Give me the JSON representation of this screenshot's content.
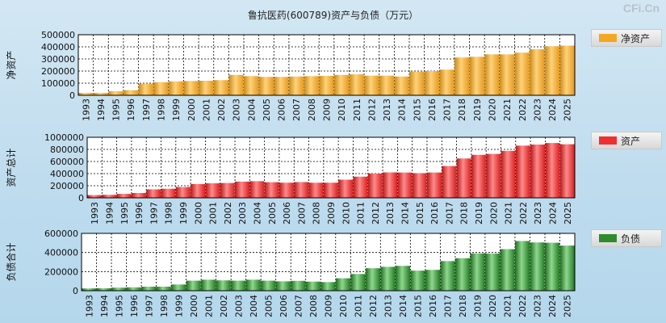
{
  "title": "鲁抗医药(600789)资产与负债（万元）",
  "watermark": "CFi.Cn",
  "colors": {
    "net_assets": "#f5a623",
    "total_assets": "#f03030",
    "liabilities": "#2e8b2e"
  },
  "chart_data": [
    {
      "type": "bar",
      "ylabel": "净资产",
      "legend": "净资产",
      "ylim": [
        0,
        500000
      ],
      "yticks": [
        0,
        100000,
        200000,
        300000,
        400000,
        500000
      ],
      "categories": [
        "1993",
        "1994",
        "1995",
        "1996",
        "1997",
        "1998",
        "1999",
        "2000",
        "2001",
        "2002",
        "2003",
        "2004",
        "2005",
        "2006",
        "2007",
        "2008",
        "2009",
        "2010",
        "2011",
        "2012",
        "2013",
        "2014",
        "2015",
        "2016",
        "2017",
        "2018",
        "2019",
        "2020",
        "2021",
        "2022",
        "2023",
        "2024",
        "2025"
      ],
      "values": [
        20000,
        20000,
        33000,
        42000,
        95000,
        108000,
        115000,
        118000,
        120000,
        125000,
        168000,
        158000,
        152000,
        152000,
        155000,
        158000,
        160000,
        168000,
        173000,
        162000,
        162000,
        155000,
        195000,
        200000,
        212000,
        312000,
        318000,
        338000,
        338000,
        352000,
        380000,
        405000,
        410000
      ],
      "grid": true,
      "legend_position": "right"
    },
    {
      "type": "bar",
      "ylabel": "资产总计",
      "legend": "资产",
      "ylim": [
        0,
        1000000
      ],
      "yticks": [
        0,
        200000,
        400000,
        600000,
        800000,
        1000000
      ],
      "categories": [
        "1993",
        "1994",
        "1995",
        "1996",
        "1997",
        "1998",
        "1999",
        "2000",
        "2001",
        "2002",
        "2003",
        "2004",
        "2005",
        "2006",
        "2007",
        "2008",
        "2009",
        "2010",
        "2011",
        "2012",
        "2013",
        "2014",
        "2015",
        "2016",
        "2017",
        "2018",
        "2019",
        "2020",
        "2021",
        "2022",
        "2023",
        "2024",
        "2025"
      ],
      "values": [
        45000,
        50000,
        65000,
        80000,
        140000,
        150000,
        178000,
        228000,
        240000,
        245000,
        268000,
        275000,
        258000,
        250000,
        260000,
        250000,
        250000,
        300000,
        350000,
        400000,
        420000,
        418000,
        408000,
        418000,
        525000,
        650000,
        710000,
        725000,
        775000,
        862000,
        880000,
        905000,
        885000
      ],
      "grid": true,
      "legend_position": "right"
    },
    {
      "type": "bar",
      "ylabel": "负债合计",
      "legend": "负债",
      "ylim": [
        0,
        600000
      ],
      "yticks": [
        0,
        200000,
        400000,
        600000
      ],
      "categories": [
        "1993",
        "1994",
        "1995",
        "1996",
        "1997",
        "1998",
        "1999",
        "2000",
        "2001",
        "2002",
        "2003",
        "2004",
        "2005",
        "2006",
        "2007",
        "2008",
        "2009",
        "2010",
        "2011",
        "2012",
        "2013",
        "2014",
        "2015",
        "2016",
        "2017",
        "2018",
        "2019",
        "2020",
        "2021",
        "2022",
        "2023",
        "2024",
        "2025"
      ],
      "values": [
        24000,
        26000,
        32000,
        35000,
        42000,
        42000,
        65000,
        105000,
        115000,
        108000,
        105000,
        115000,
        105000,
        98000,
        103000,
        95000,
        90000,
        130000,
        175000,
        235000,
        250000,
        260000,
        210000,
        218000,
        310000,
        340000,
        390000,
        388000,
        435000,
        520000,
        505000,
        502000,
        472000
      ],
      "grid": true,
      "legend_position": "right"
    }
  ]
}
